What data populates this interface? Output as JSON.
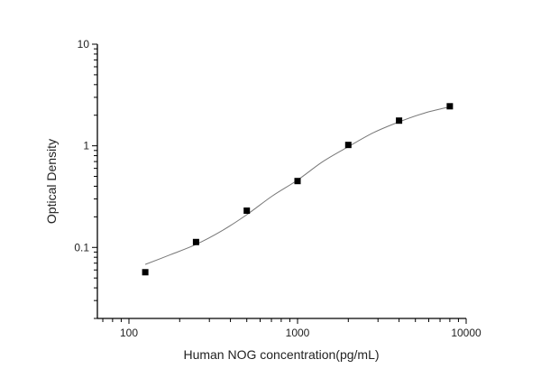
{
  "chart_data": {
    "type": "scatter",
    "xlabel": "Human NOG concentration(pg/mL)",
    "ylabel": "Optical Density",
    "x_scale": "log",
    "y_scale": "log",
    "xlim": [
      65,
      10000
    ],
    "ylim": [
      0.02,
      10
    ],
    "x_ticks": [
      {
        "value": 100,
        "label": "100"
      },
      {
        "value": 1000,
        "label": "1000"
      },
      {
        "value": 10000,
        "label": "10000"
      }
    ],
    "y_ticks": [
      {
        "value": 0.1,
        "label": "0.1"
      },
      {
        "value": 1,
        "label": "1"
      },
      {
        "value": 10,
        "label": "10"
      }
    ],
    "grid": false,
    "series": [
      {
        "marker": "square",
        "color": "#000000",
        "x": [
          125,
          250,
          500,
          1000,
          2000,
          4000,
          8000
        ],
        "y": [
          0.057,
          0.113,
          0.23,
          0.45,
          1.02,
          1.77,
          2.45
        ]
      }
    ],
    "fit_curve": {
      "color": "#777777",
      "x": [
        125,
        177,
        250,
        354,
        500,
        707,
        1000,
        1414,
        2000,
        2828,
        4000,
        5657,
        8000
      ],
      "y": [
        0.068,
        0.085,
        0.107,
        0.145,
        0.21,
        0.32,
        0.46,
        0.7,
        0.98,
        1.35,
        1.72,
        2.1,
        2.42
      ]
    }
  }
}
